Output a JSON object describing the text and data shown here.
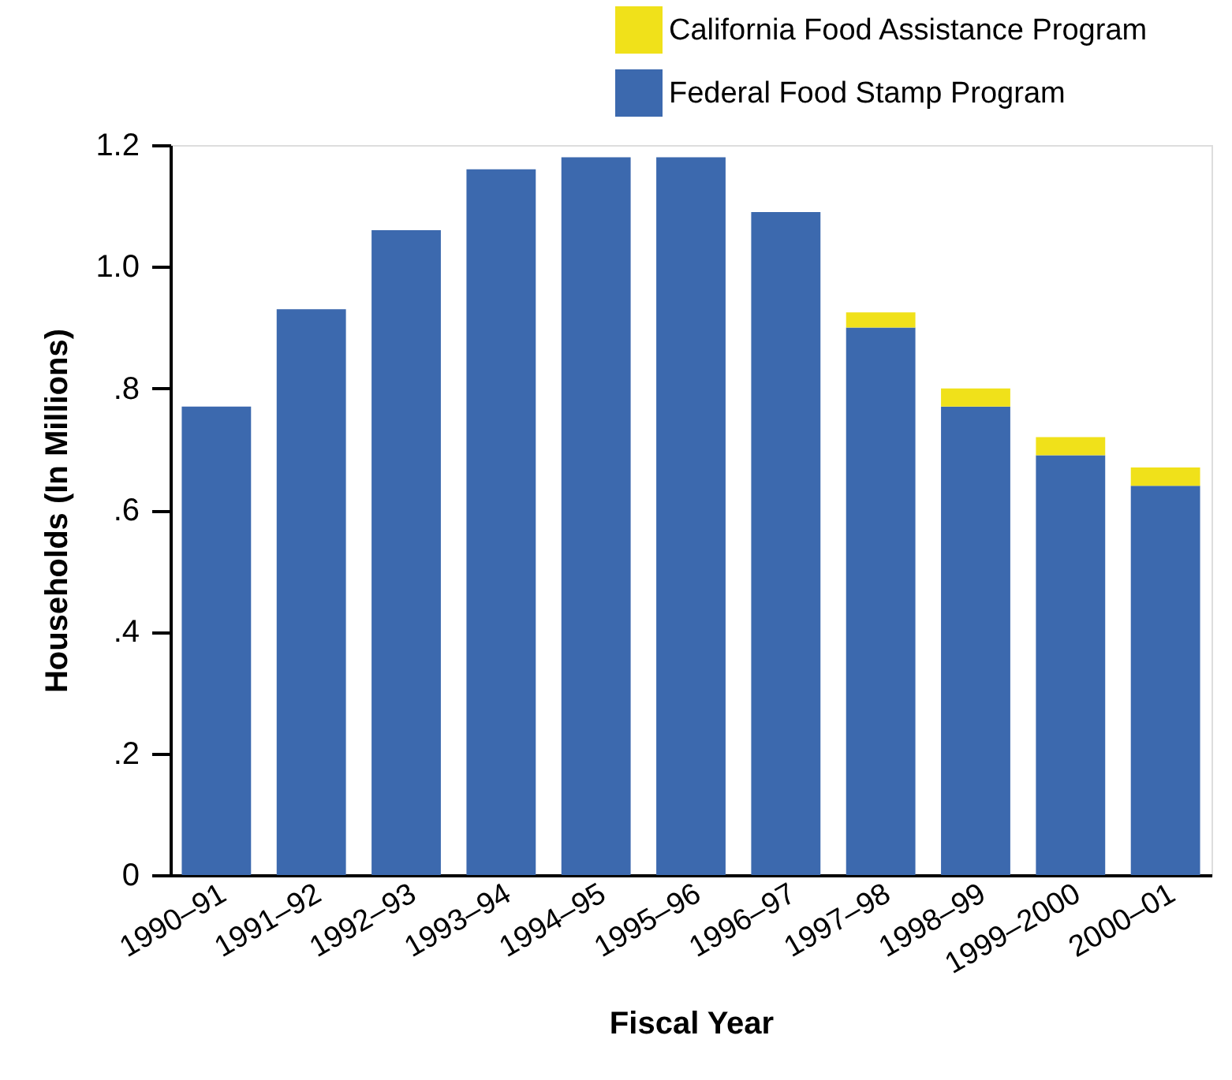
{
  "chart_data": {
    "type": "bar",
    "stacked": true,
    "xlabel": "Fiscal Year",
    "ylabel": "Households (In Millions)",
    "categories": [
      "1990–91",
      "1991–92",
      "1992–93",
      "1993–94",
      "1994–95",
      "1995–96",
      "1996–97",
      "1997–98",
      "1998–99",
      "1999–2000",
      "2000–01"
    ],
    "series": [
      {
        "name": "Federal Food Stamp Program",
        "color": "#3c69ae",
        "values": [
          0.77,
          0.93,
          1.06,
          1.16,
          1.18,
          1.18,
          1.09,
          0.9,
          0.77,
          0.69,
          0.64
        ]
      },
      {
        "name": "California Food Assistance Program",
        "color": "#f0e11a",
        "values": [
          null,
          null,
          null,
          null,
          null,
          null,
          null,
          0.025,
          0.03,
          0.03,
          0.03
        ]
      }
    ],
    "ylim": [
      0,
      1.2
    ],
    "yticks": [
      0,
      {
        "value": 0.2,
        "label": ".2"
      },
      {
        "value": 0.4,
        "label": ".4"
      },
      {
        "value": 0.6,
        "label": ".6"
      },
      {
        "value": 0.8,
        "label": ".8"
      },
      {
        "value": 1.0,
        "label": "1.0"
      },
      1.2
    ],
    "grid": false,
    "legend": "top right"
  }
}
